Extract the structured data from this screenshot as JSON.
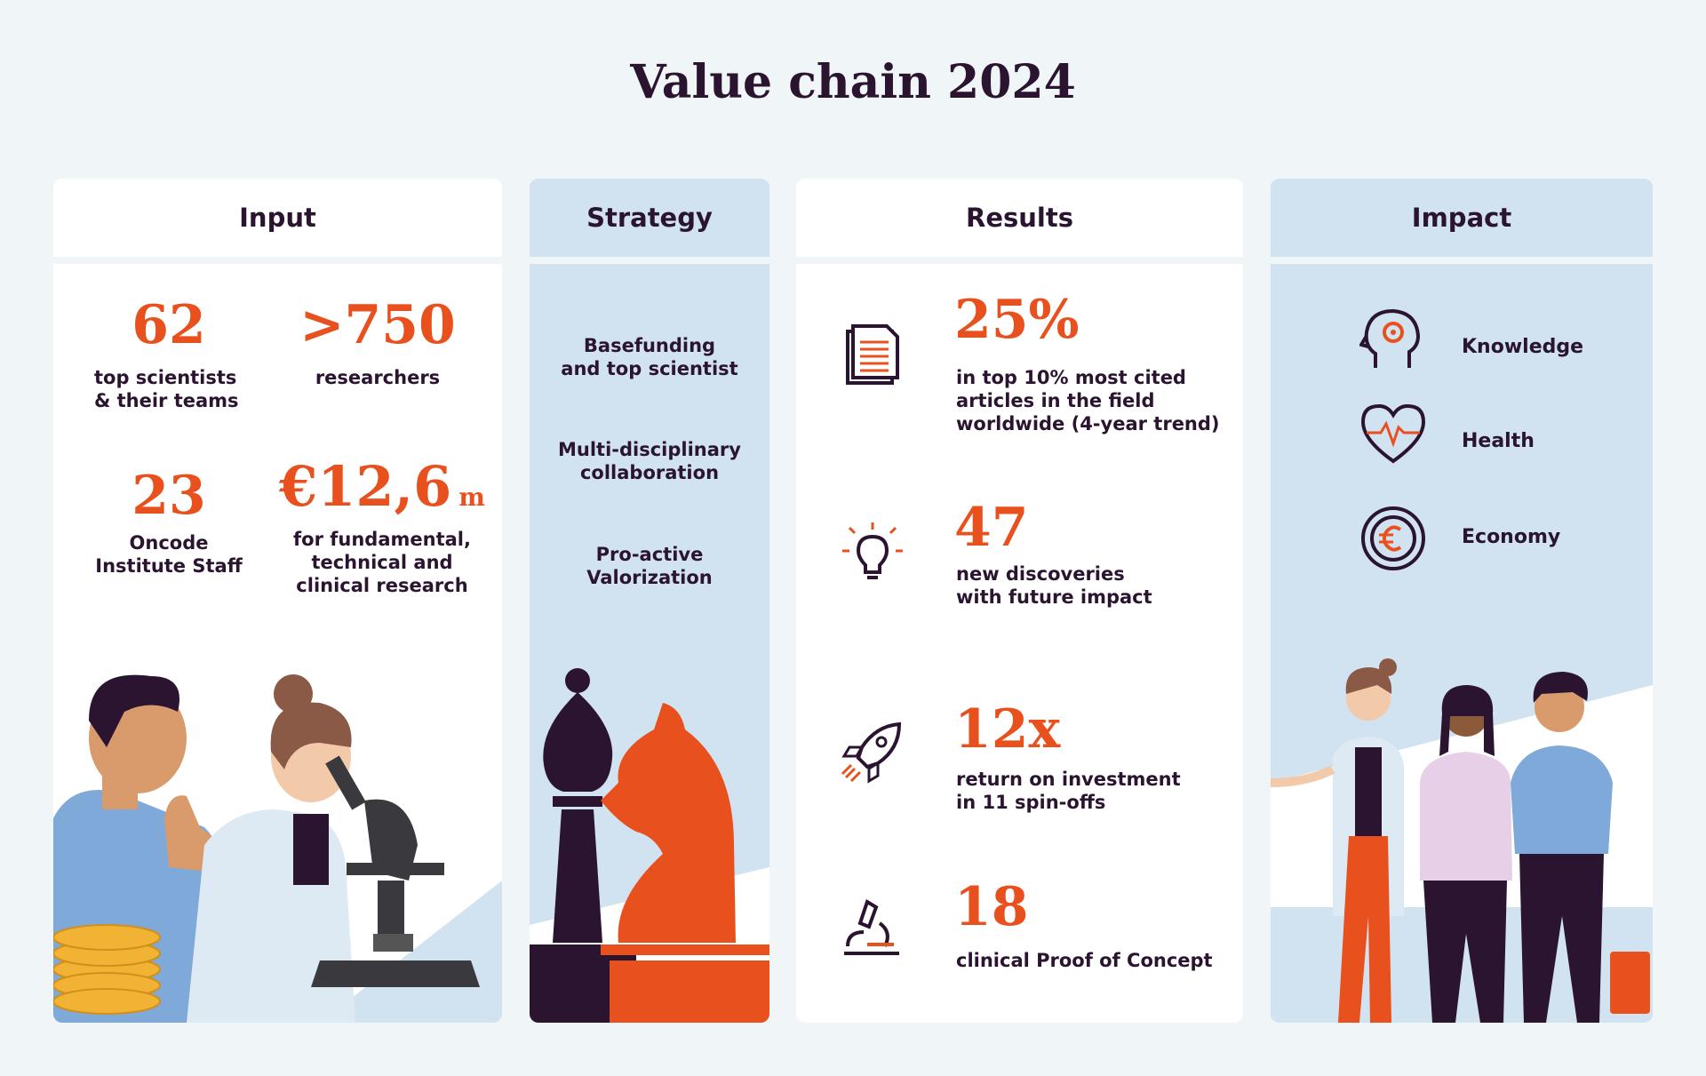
{
  "title": "Value chain 2024",
  "colors": {
    "accent": "#e8501e",
    "dark": "#2b1430",
    "panel_blue": "#d1e3f0",
    "panel_white": "#ffffff",
    "background": "#f0f5f8"
  },
  "input": {
    "heading": "Input",
    "stats": [
      {
        "value": "62",
        "label": "top scientists\n& their teams"
      },
      {
        "value": ">750",
        "label": "researchers"
      },
      {
        "value": "23",
        "label": "Oncode\nInstitute Staff"
      },
      {
        "value": "€12,6",
        "unit": "m",
        "label": "for fundamental,\ntechnical and\nclinical research"
      }
    ]
  },
  "strategy": {
    "heading": "Strategy",
    "items": [
      "Basefunding\nand top scientist",
      "Multi-disciplinary\ncollaboration",
      "Pro-active\nValorization"
    ]
  },
  "results": {
    "heading": "Results",
    "items": [
      {
        "icon": "document-icon",
        "value": "25%",
        "label": "in top 10% most cited\narticles in the field\nworldwide (4-year trend)"
      },
      {
        "icon": "lightbulb-icon",
        "value": "47",
        "label": "new discoveries\nwith future impact"
      },
      {
        "icon": "rocket-icon",
        "value": "12x",
        "label": "return on investment\nin 11 spin-offs"
      },
      {
        "icon": "microscope-icon",
        "value": "18",
        "label": "clinical Proof of Concept"
      }
    ]
  },
  "impact": {
    "heading": "Impact",
    "items": [
      {
        "icon": "brain-gear-icon",
        "label": "Knowledge"
      },
      {
        "icon": "heart-pulse-icon",
        "label": "Health"
      },
      {
        "icon": "euro-coin-icon",
        "label": "Economy"
      }
    ]
  }
}
